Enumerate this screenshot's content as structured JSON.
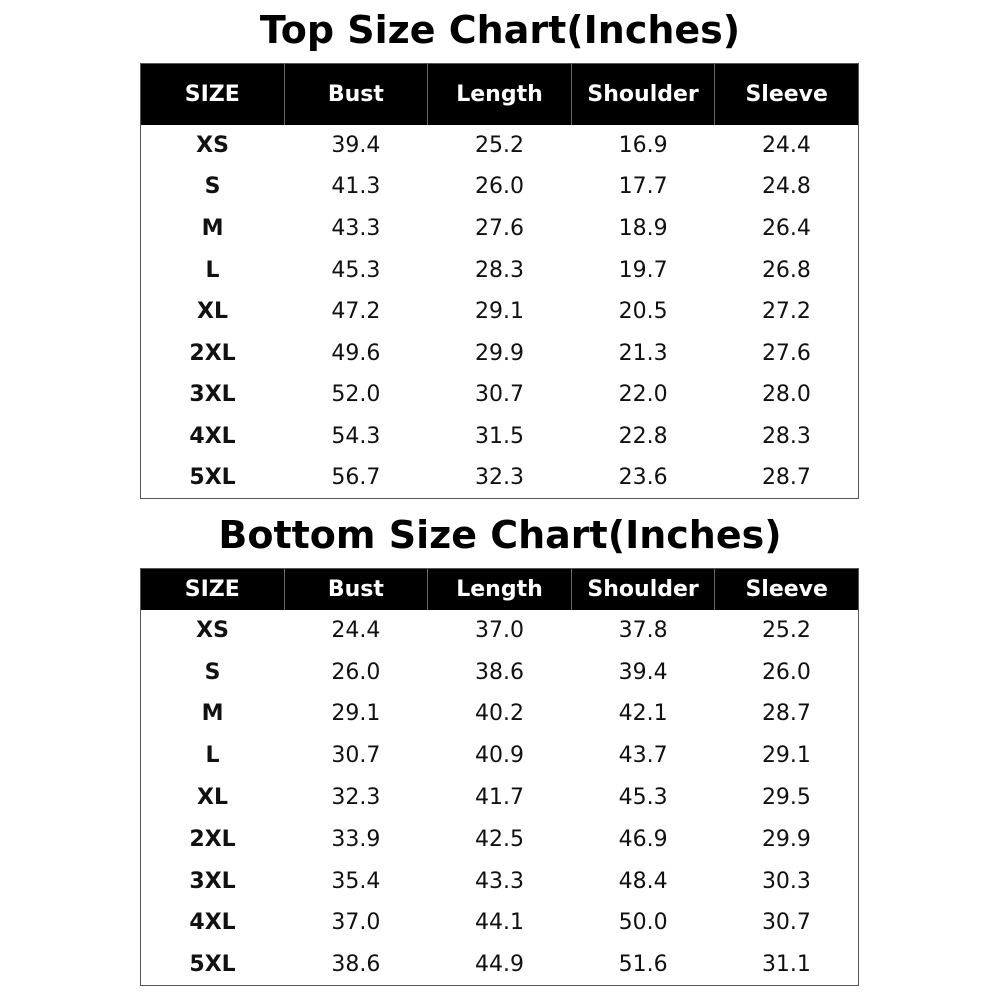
{
  "top": {
    "title": "Top Size Chart(Inches)",
    "headers": [
      "SIZE",
      "Bust",
      "Length",
      "Shoulder",
      "Sleeve"
    ],
    "rows": [
      [
        "XS",
        "39.4",
        "25.2",
        "16.9",
        "24.4"
      ],
      [
        "S",
        "41.3",
        "26.0",
        "17.7",
        "24.8"
      ],
      [
        "M",
        "43.3",
        "27.6",
        "18.9",
        "26.4"
      ],
      [
        "L",
        "45.3",
        "28.3",
        "19.7",
        "26.8"
      ],
      [
        "XL",
        "47.2",
        "29.1",
        "20.5",
        "27.2"
      ],
      [
        "2XL",
        "49.6",
        "29.9",
        "21.3",
        "27.6"
      ],
      [
        "3XL",
        "52.0",
        "30.7",
        "22.0",
        "28.0"
      ],
      [
        "4XL",
        "54.3",
        "31.5",
        "22.8",
        "28.3"
      ],
      [
        "5XL",
        "56.7",
        "32.3",
        "23.6",
        "28.7"
      ]
    ]
  },
  "bottom": {
    "title": "Bottom Size Chart(Inches)",
    "headers": [
      "SIZE",
      "Bust",
      "Length",
      "Shoulder",
      "Sleeve"
    ],
    "rows": [
      [
        "XS",
        "24.4",
        "37.0",
        "37.8",
        "25.2"
      ],
      [
        "S",
        "26.0",
        "38.6",
        "39.4",
        "26.0"
      ],
      [
        "M",
        "29.1",
        "40.2",
        "42.1",
        "28.7"
      ],
      [
        "L",
        "30.7",
        "40.9",
        "43.7",
        "29.1"
      ],
      [
        "XL",
        "32.3",
        "41.7",
        "45.3",
        "29.5"
      ],
      [
        "2XL",
        "33.9",
        "42.5",
        "46.9",
        "29.9"
      ],
      [
        "3XL",
        "35.4",
        "43.3",
        "48.4",
        "30.3"
      ],
      [
        "4XL",
        "37.0",
        "44.1",
        "50.0",
        "30.7"
      ],
      [
        "5XL",
        "38.6",
        "44.9",
        "51.6",
        "31.1"
      ]
    ]
  }
}
